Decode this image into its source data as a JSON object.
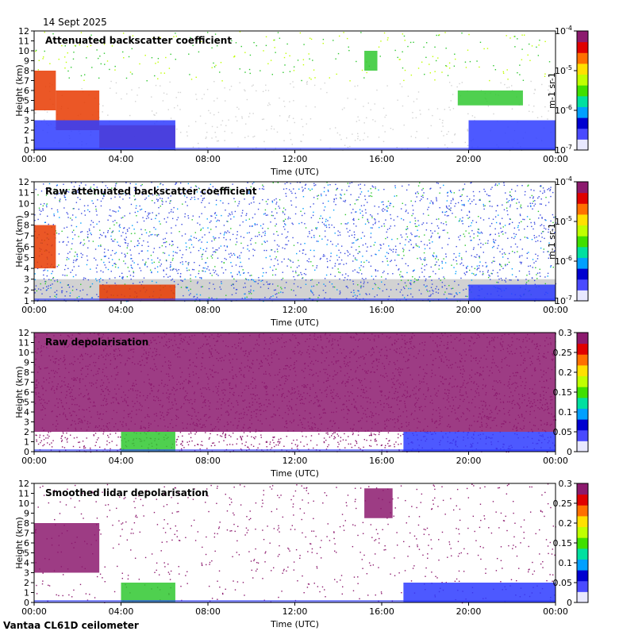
{
  "date": "14 Sept 2025",
  "footer": "Vantaa CL61D ceilometer",
  "colors": {
    "background_no_signal": "#d0d0d0",
    "low": "#3a3aff",
    "mid": "#34c834",
    "high": "#e60000",
    "top": "#8c1a6e"
  },
  "chart_data": [
    {
      "type": "heatmap",
      "title": "Attenuated backscatter coefficient",
      "xlabel": "Time (UTC)",
      "ylabel": "Height (km)",
      "x_ticks": [
        "00:00",
        "04:00",
        "08:00",
        "12:00",
        "16:00",
        "20:00",
        "00:00"
      ],
      "y_ticks": [
        "0",
        "1",
        "2",
        "3",
        "4",
        "5",
        "6",
        "7",
        "8",
        "9",
        "10",
        "11",
        "12"
      ],
      "ylim": [
        0,
        12
      ],
      "colorbar": {
        "scale": "log",
        "range": [
          1e-07,
          0.0001
        ],
        "tick_labels": [
          "10-4",
          "10-5",
          "10-6",
          "10-7"
        ],
        "tick_main": [
          "10",
          "10",
          "10",
          "10"
        ],
        "tick_exp": [
          "-4",
          "-5",
          "-6",
          "-7"
        ],
        "unit_label": "m-1 sr-1"
      },
      "features": [
        {
          "time_h": [
            0.0,
            1.0
          ],
          "height_km": [
            4.0,
            8.0
          ],
          "level": "high"
        },
        {
          "time_h": [
            1.0,
            3.0
          ],
          "height_km": [
            2.0,
            6.0
          ],
          "level": "high"
        },
        {
          "time_h": [
            3.0,
            6.5
          ],
          "height_km": [
            0.2,
            2.5
          ],
          "level": "high"
        },
        {
          "time_h": [
            0.0,
            6.5
          ],
          "height_km": [
            0.0,
            3.0
          ],
          "level": "low"
        },
        {
          "time_h": [
            15.2,
            15.8
          ],
          "height_km": [
            8.0,
            10.0
          ],
          "level": "mid"
        },
        {
          "time_h": [
            19.5,
            22.5
          ],
          "height_km": [
            4.5,
            6.0
          ],
          "level": "mid"
        },
        {
          "time_h": [
            20.0,
            24.0
          ],
          "height_km": [
            0.0,
            3.0
          ],
          "level": "low"
        }
      ]
    },
    {
      "type": "heatmap",
      "title": "Raw attenuated backscatter coefficient",
      "xlabel": "Time (UTC)",
      "ylabel": "Height (km)",
      "x_ticks": [
        "00:00",
        "04:00",
        "08:00",
        "12:00",
        "16:00",
        "20:00",
        "00:00"
      ],
      "y_ticks": [
        "1",
        "2",
        "3",
        "4",
        "5",
        "6",
        "7",
        "8",
        "9",
        "10",
        "11",
        "12"
      ],
      "ylim": [
        1,
        12
      ],
      "colorbar": {
        "scale": "log",
        "range": [
          1e-07,
          0.0001
        ],
        "tick_labels": [
          "10-4",
          "10-5",
          "10-6",
          "10-7"
        ],
        "tick_main": [
          "10",
          "10",
          "10",
          "10"
        ],
        "tick_exp": [
          "-4",
          "-5",
          "-6",
          "-7"
        ],
        "unit_label": "m-1 sr-1"
      },
      "features": [
        {
          "time_h": [
            0.0,
            1.0
          ],
          "height_km": [
            4.0,
            8.0
          ],
          "level": "high"
        },
        {
          "time_h": [
            3.0,
            6.5
          ],
          "height_km": [
            1.0,
            2.5
          ],
          "level": "high"
        },
        {
          "time_h": [
            0.0,
            24.0
          ],
          "height_km": [
            3.0,
            12.0
          ],
          "level": "noise"
        },
        {
          "time_h": [
            20.0,
            24.0
          ],
          "height_km": [
            1.0,
            2.5
          ],
          "level": "low"
        }
      ]
    },
    {
      "type": "heatmap",
      "title": "Raw depolarisation",
      "xlabel": "Time (UTC)",
      "ylabel": "Height (km)",
      "x_ticks": [
        "00:00",
        "04:00",
        "08:00",
        "12:00",
        "16:00",
        "20:00",
        "00:00"
      ],
      "y_ticks": [
        "0",
        "1",
        "2",
        "3",
        "4",
        "5",
        "6",
        "7",
        "8",
        "9",
        "10",
        "11",
        "12"
      ],
      "ylim": [
        0,
        12
      ],
      "colorbar": {
        "scale": "linear",
        "range": [
          0,
          0.3
        ],
        "tick_labels": [
          "0.3",
          "0.25",
          "0.2",
          "0.15",
          "0.1",
          "0.05",
          "0"
        ]
      },
      "features": [
        {
          "time_h": [
            0.0,
            24.0
          ],
          "height_km": [
            2.0,
            12.0
          ],
          "level": "top"
        },
        {
          "time_h": [
            4.0,
            6.5
          ],
          "height_km": [
            0.0,
            2.0
          ],
          "level": "mid"
        },
        {
          "time_h": [
            17.0,
            24.0
          ],
          "height_km": [
            0.0,
            2.0
          ],
          "level": "low"
        }
      ]
    },
    {
      "type": "heatmap",
      "title": "Smoothed lidar depolarisation",
      "xlabel": "Time (UTC)",
      "ylabel": "Height (km)",
      "x_ticks": [
        "00:00",
        "04:00",
        "08:00",
        "12:00",
        "16:00",
        "20:00",
        "00:00"
      ],
      "y_ticks": [
        "0",
        "1",
        "2",
        "3",
        "4",
        "5",
        "6",
        "7",
        "8",
        "9",
        "10",
        "11",
        "12"
      ],
      "ylim": [
        0,
        12
      ],
      "colorbar": {
        "scale": "linear",
        "range": [
          0,
          0.3
        ],
        "tick_labels": [
          "0.3",
          "0.25",
          "0.2",
          "0.15",
          "0.1",
          "0.05",
          "0"
        ]
      },
      "features": [
        {
          "time_h": [
            0.0,
            3.0
          ],
          "height_km": [
            3.0,
            8.0
          ],
          "level": "top"
        },
        {
          "time_h": [
            4.0,
            6.5
          ],
          "height_km": [
            0.0,
            2.0
          ],
          "level": "mid"
        },
        {
          "time_h": [
            15.2,
            16.5
          ],
          "height_km": [
            8.5,
            11.5
          ],
          "level": "top"
        },
        {
          "time_h": [
            17.0,
            24.0
          ],
          "height_km": [
            0.0,
            2.0
          ],
          "level": "low"
        }
      ]
    }
  ]
}
